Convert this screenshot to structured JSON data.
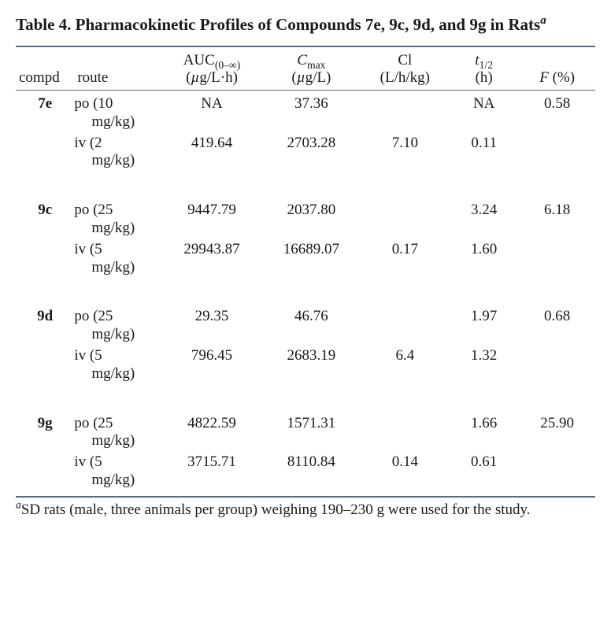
{
  "title_main": "Table 4. Pharmacokinetic Profiles of Compounds 7e, 9c, 9d, and 9g in Rats",
  "title_fn_marker": "a",
  "headers": {
    "compd": "compd",
    "route": "route",
    "auc_top_html": "AUC<sub>(0–∞)</sub>",
    "auc_unit_html": "(<span class=\"ital\">µ</span>g/L·h)",
    "cmax_top_html": "<span class=\"ital\">C</span><sub>max</sub>",
    "cmax_unit_html": "(<span class=\"ital\">µ</span>g/L)",
    "cl_top": "Cl",
    "cl_unit": "(L/h/kg)",
    "thalf_top_html": "<span class=\"ital\">t</span><sub>1/2</sub>",
    "thalf_unit": "(h)",
    "f_html": "<span class=\"ital\">F</span> (%)"
  },
  "groups": [
    {
      "compd": "7e",
      "rows": [
        {
          "route_pre": "po (10",
          "route_dose": "mg/kg)",
          "auc": "NA",
          "cmax": "37.36",
          "cl": "",
          "thalf": "NA",
          "f": "0.58"
        },
        {
          "route_pre": "iv (2",
          "route_dose": "mg/kg)",
          "auc": "419.64",
          "cmax": "2703.28",
          "cl": "7.10",
          "thalf": "0.11",
          "f": ""
        }
      ]
    },
    {
      "compd": "9c",
      "rows": [
        {
          "route_pre": "po (25",
          "route_dose": "mg/kg)",
          "auc": "9447.79",
          "cmax": "2037.80",
          "cl": "",
          "thalf": "3.24",
          "f": "6.18"
        },
        {
          "route_pre": "iv (5",
          "route_dose": "mg/kg)",
          "auc": "29943.87",
          "cmax": "16689.07",
          "cl": "0.17",
          "thalf": "1.60",
          "f": ""
        }
      ]
    },
    {
      "compd": "9d",
      "rows": [
        {
          "route_pre": "po (25",
          "route_dose": "mg/kg)",
          "auc": "29.35",
          "cmax": "46.76",
          "cl": "",
          "thalf": "1.97",
          "f": "0.68"
        },
        {
          "route_pre": "iv (5",
          "route_dose": "mg/kg)",
          "auc": "796.45",
          "cmax": "2683.19",
          "cl": "6.4",
          "thalf": "1.32",
          "f": ""
        }
      ]
    },
    {
      "compd": "9g",
      "rows": [
        {
          "route_pre": "po (25",
          "route_dose": "mg/kg)",
          "auc": "4822.59",
          "cmax": "1571.31",
          "cl": "",
          "thalf": "1.66",
          "f": "25.90"
        },
        {
          "route_pre": "iv (5",
          "route_dose": "mg/kg)",
          "auc": "3715.71",
          "cmax": "8110.84",
          "cl": "0.14",
          "thalf": "0.61",
          "f": ""
        }
      ]
    }
  ],
  "footnote_marker": "a",
  "footnote_text": "SD rats (male, three animals per group) weighing 190–230 g were used for the study."
}
